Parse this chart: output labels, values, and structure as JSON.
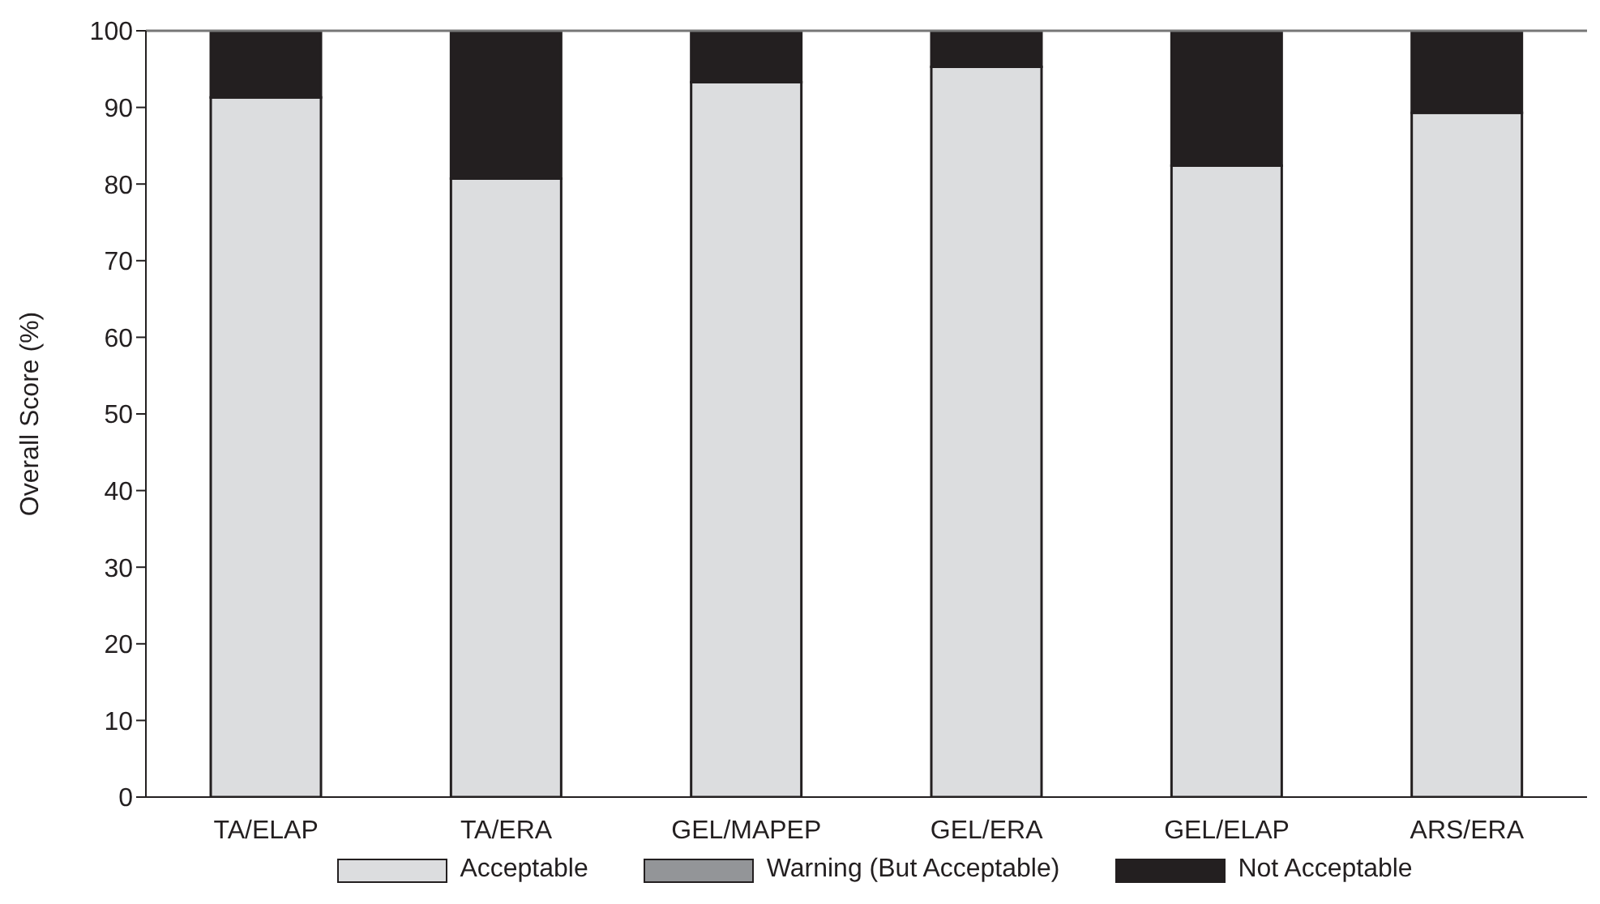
{
  "chart_data": {
    "type": "bar",
    "ylabel": "Overall Score (%)",
    "categories": [
      "TA/ELAP",
      "TA/ERA",
      "GEL/MAPEP",
      "GEL/ERA",
      "GEL/ELAP",
      "ARS/ERA"
    ],
    "series": [
      {
        "name": "Acceptable",
        "color": "#dcdddf",
        "values": [
          91.3,
          80.7,
          93.3,
          95.3,
          82.4,
          89.3
        ]
      },
      {
        "name": "Warning (But Acceptable)",
        "color": "#939598",
        "values": [
          0,
          0,
          0,
          0,
          0,
          0
        ]
      },
      {
        "name": "Not Acceptable",
        "color": "#231f20",
        "values": [
          8.7,
          19.3,
          6.7,
          4.7,
          17.6,
          10.7
        ]
      }
    ],
    "stacked": true,
    "ylim": [
      0,
      100
    ],
    "yticks": [
      0,
      10,
      20,
      30,
      40,
      50,
      60,
      70,
      80,
      90,
      100
    ],
    "grid": false,
    "legend": "bottom"
  }
}
